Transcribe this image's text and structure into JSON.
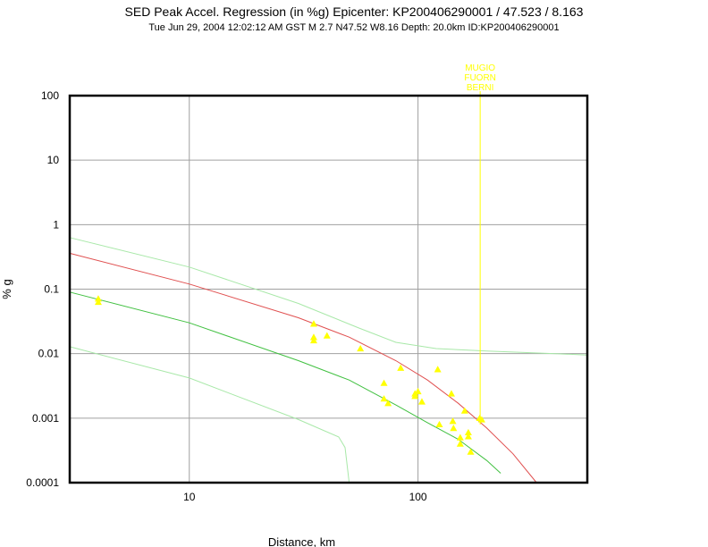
{
  "header": {
    "title": "SED Peak Accel. Regression (in %g) Epicenter: KP200406290001 / 47.523 / 8.163",
    "subtitle": "Tue Jun 29, 2004 12:02:12 AM GST   M 2.7   N47.52 W8.16   Depth: 20.0km   ID:KP200406290001"
  },
  "chart_data": {
    "type": "scatter",
    "title": "SED Peak Accel. Regression (in %g) Epicenter: KP200406290001 / 47.523 / 8.163",
    "xlabel": "Distance, km",
    "ylabel": "% g",
    "x_scale": "log",
    "y_scale": "log",
    "xlim": [
      3,
      550
    ],
    "ylim": [
      0.0001,
      100
    ],
    "x_ticks": [
      "10",
      "100"
    ],
    "y_ticks": [
      "0.0001",
      "0.001",
      "0.01",
      "0.1",
      "1",
      "10",
      "100"
    ],
    "grid": true,
    "colors": {
      "points": "#ffff00",
      "upper_curve": "#e05050",
      "lower_curve": "#40c040",
      "band_curves": "#a8e8a8",
      "marker_line": "#ffff00"
    },
    "series": [
      {
        "values": [
          [
            4,
            0.071
          ],
          [
            4,
            0.063
          ],
          [
            35,
            0.029
          ],
          [
            35,
            0.018
          ],
          [
            35,
            0.016
          ],
          [
            40,
            0.019
          ],
          [
            56,
            0.012
          ],
          [
            84,
            0.006
          ],
          [
            71,
            0.0035
          ],
          [
            71,
            0.002
          ],
          [
            74,
            0.0017
          ],
          [
            97,
            0.0024
          ],
          [
            97,
            0.0022
          ],
          [
            100,
            0.0026
          ],
          [
            104,
            0.0018
          ],
          [
            122,
            0.0057
          ],
          [
            124,
            0.0008
          ],
          [
            140,
            0.0024
          ],
          [
            142,
            0.0009
          ],
          [
            143,
            0.0007
          ],
          [
            153,
            0.0005
          ],
          [
            153,
            0.0004
          ],
          [
            160,
            0.0013
          ],
          [
            166,
            0.0006
          ],
          [
            166,
            0.00052
          ],
          [
            170,
            0.0003
          ],
          [
            186,
            0.001
          ],
          [
            190,
            0.00095
          ]
        ]
      }
    ],
    "curves": [
      {
        "role": "upper-regression",
        "points": [
          [
            3,
            0.36
          ],
          [
            10,
            0.12
          ],
          [
            30,
            0.036
          ],
          [
            50,
            0.018
          ],
          [
            80,
            0.0078
          ],
          [
            110,
            0.0039
          ],
          [
            150,
            0.0017
          ],
          [
            200,
            0.0007
          ],
          [
            260,
            0.00028
          ],
          [
            330,
            0.0001
          ]
        ]
      },
      {
        "role": "lower-regression",
        "points": [
          [
            3,
            0.09
          ],
          [
            10,
            0.03
          ],
          [
            30,
            0.0078
          ],
          [
            50,
            0.0039
          ],
          [
            80,
            0.0016
          ],
          [
            110,
            0.00085
          ],
          [
            150,
            0.00047
          ],
          [
            200,
            0.00022
          ],
          [
            230,
            0.00014
          ]
        ]
      },
      {
        "role": "upper-band",
        "points": [
          [
            3,
            0.63
          ],
          [
            10,
            0.22
          ],
          [
            30,
            0.06
          ],
          [
            55,
            0.025
          ],
          [
            80,
            0.015
          ],
          [
            120,
            0.012
          ],
          [
            200,
            0.011
          ],
          [
            400,
            0.01
          ],
          [
            550,
            0.0095
          ]
        ]
      },
      {
        "role": "lower-band",
        "points": [
          [
            3,
            0.0128
          ],
          [
            10,
            0.0042
          ],
          [
            30,
            0.00095
          ],
          [
            45,
            0.00051
          ],
          [
            46,
            0.00045
          ],
          [
            48,
            0.00035
          ],
          [
            50,
            0.0001
          ]
        ]
      }
    ],
    "marker_line": {
      "x": 187,
      "labels": [
        "MUGIO",
        "FUORN",
        "BERNI"
      ]
    }
  }
}
